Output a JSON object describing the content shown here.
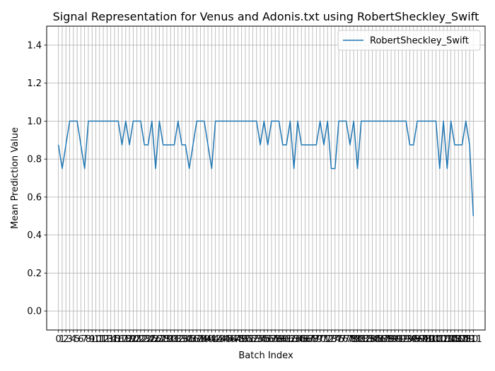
{
  "chart_data": {
    "type": "line",
    "title": "Signal Representation for Venus and Adonis.txt using RobertSheckley_Swift",
    "xlabel": "Batch Index",
    "ylabel": "Mean Prediction Value",
    "xlim": [
      -3.15,
      114.15
    ],
    "ylim": [
      -0.1,
      1.5
    ],
    "yticks": [
      0.0,
      0.2,
      0.4,
      0.6,
      0.8,
      1.0,
      1.2,
      1.4
    ],
    "grid": true,
    "legend": "upper right",
    "series": [
      {
        "name": "RobertSheckley_Swift",
        "color": "#1f77b4",
        "x": [
          0,
          1,
          2,
          3,
          4,
          5,
          6,
          7,
          8,
          9,
          10,
          11,
          12,
          13,
          14,
          15,
          16,
          17,
          18,
          19,
          20,
          21,
          22,
          23,
          24,
          25,
          26,
          27,
          28,
          29,
          30,
          31,
          32,
          33,
          34,
          35,
          36,
          37,
          38,
          39,
          40,
          41,
          42,
          43,
          44,
          45,
          46,
          47,
          48,
          49,
          50,
          51,
          52,
          53,
          54,
          55,
          56,
          57,
          58,
          59,
          60,
          61,
          62,
          63,
          64,
          65,
          66,
          67,
          68,
          69,
          70,
          71,
          72,
          73,
          74,
          75,
          76,
          77,
          78,
          79,
          80,
          81,
          82,
          83,
          84,
          85,
          86,
          87,
          88,
          89,
          90,
          91,
          92,
          93,
          94,
          95,
          96,
          97,
          98,
          99,
          100,
          101,
          102,
          103,
          104,
          105,
          106,
          107,
          108,
          109,
          110,
          111
        ],
        "values": [
          0.875,
          0.75,
          0.875,
          1.0,
          1.0,
          1.0,
          0.875,
          0.75,
          1.0,
          1.0,
          1.0,
          1.0,
          1.0,
          1.0,
          1.0,
          1.0,
          1.0,
          0.875,
          1.0,
          0.875,
          1.0,
          1.0,
          1.0,
          0.875,
          0.875,
          1.0,
          0.75,
          1.0,
          0.875,
          0.875,
          0.875,
          0.875,
          1.0,
          0.875,
          0.875,
          0.75,
          0.875,
          1.0,
          1.0,
          1.0,
          0.875,
          0.75,
          1.0,
          1.0,
          1.0,
          1.0,
          1.0,
          1.0,
          1.0,
          1.0,
          1.0,
          1.0,
          1.0,
          1.0,
          0.875,
          1.0,
          0.875,
          1.0,
          1.0,
          1.0,
          0.875,
          0.875,
          1.0,
          0.75,
          1.0,
          0.875,
          0.875,
          0.875,
          0.875,
          0.875,
          1.0,
          0.875,
          1.0,
          0.75,
          0.75,
          1.0,
          1.0,
          1.0,
          0.875,
          1.0,
          0.75,
          1.0,
          1.0,
          1.0,
          1.0,
          1.0,
          1.0,
          1.0,
          1.0,
          1.0,
          1.0,
          1.0,
          1.0,
          1.0,
          0.875,
          0.875,
          1.0,
          1.0,
          1.0,
          1.0,
          1.0,
          1.0,
          0.75,
          1.0,
          0.75,
          1.0,
          0.875,
          0.875,
          0.875,
          1.0,
          0.875,
          0.5
        ]
      }
    ]
  }
}
